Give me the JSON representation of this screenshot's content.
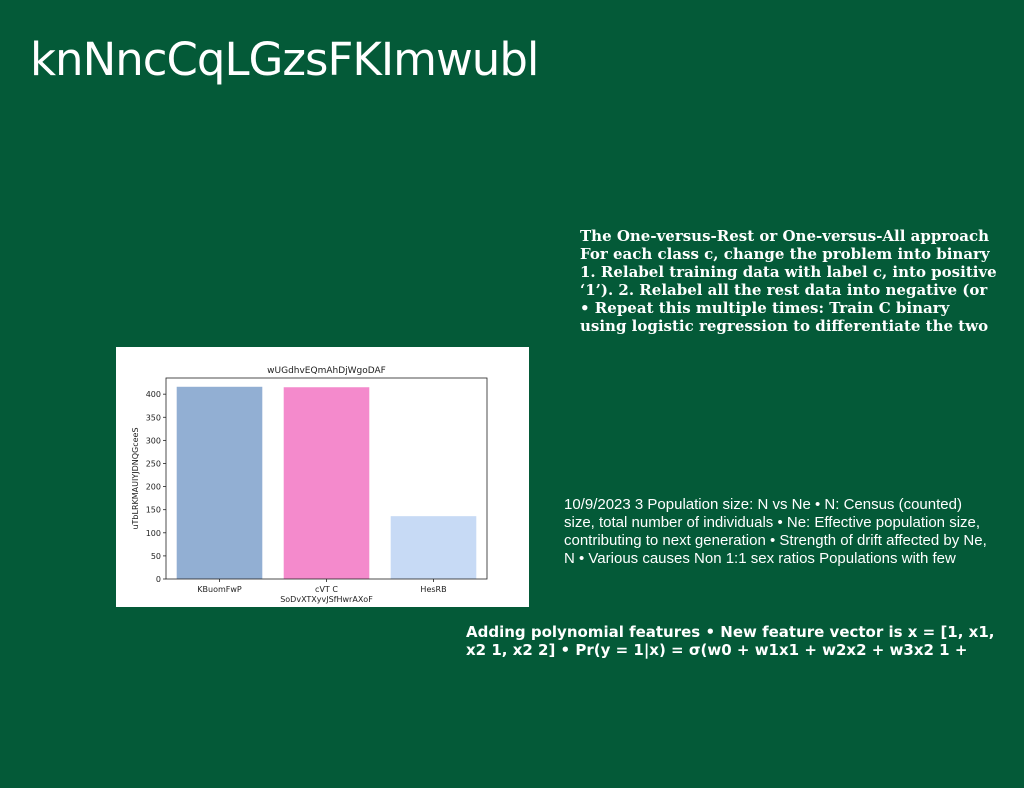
{
  "slide": {
    "title": "knNncCqLGzsFKImwubl"
  },
  "text_blocks": {
    "ovr": [
      "The One-versus-Rest or One-versus-All approach",
      "For each class c, change the problem into binary",
      "1. Relabel training data with label c, into positive",
      "‘1’). 2. Relabel all the rest data into negative (or",
      "• Repeat this multiple times: Train C binary",
      "using logistic regression to differentiate the two"
    ],
    "population": [
      "10/9/2023 3 Population size: N vs Ne • N: Census (counted)",
      "size, total number of individuals • Ne: Effective population size,",
      "contributing to next generation • Strength of drift affected by Ne,",
      "N • Various causes  Non 1:1 sex ratios  Populations with few"
    ],
    "poly": [
      "Adding polynomial features • New feature vector is x = [1, x1,",
      "x2 1, x2 2] • Pr(y = 1|x) = σ(w0 + w1x1 + w2x2 + w3x2 1 +"
    ]
  },
  "chart_data": {
    "type": "bar",
    "title": "wUGdhvEQmAhDjWgoDAF",
    "xlabel": "SoDvXTXyvJSfHwrAXoF",
    "ylabel": "uTbLRKMAUIYJDNQGceeS",
    "categories": [
      "KBuomFwP",
      "cVT C",
      "HesRB"
    ],
    "values": [
      416,
      415,
      136
    ],
    "colors": [
      "#92afd3",
      "#f48acc",
      "#c7daf5"
    ],
    "ylim": [
      0,
      435
    ],
    "yticks": [
      0,
      50,
      100,
      150,
      200,
      250,
      300,
      350,
      400
    ],
    "grid": false,
    "legend": "none"
  }
}
